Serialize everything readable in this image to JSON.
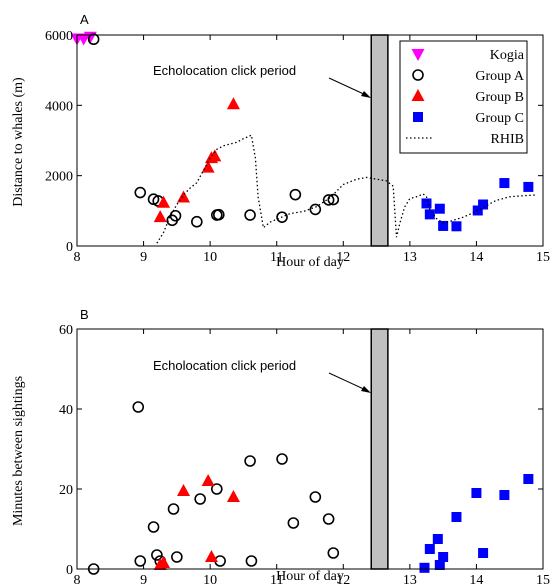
{
  "chart_data": [
    {
      "type": "scatter",
      "panel_label": "A",
      "xlabel": "Hour of day",
      "ylabel": "Distance to whales (m)",
      "xlim": [
        8,
        15
      ],
      "ylim": [
        0,
        6000
      ],
      "xticks": [
        "8",
        "9",
        "10",
        "11",
        "12",
        "13",
        "14",
        "15"
      ],
      "yticks": [
        "0",
        "2000",
        "4000",
        "6000"
      ],
      "xtick_values": [
        8,
        9,
        10,
        11,
        12,
        13,
        14,
        15
      ],
      "ytick_values": [
        0,
        2000,
        4000,
        6000
      ],
      "annotation": "Echolocation click period",
      "shaded_period": [
        12.42,
        12.67
      ],
      "legend_position": "top-right",
      "series": [
        {
          "name": "Kogia",
          "marker": "triangle-down",
          "color": "#ff00ff",
          "points": [
            [
              8.0,
              5900
            ],
            [
              8.1,
              5900
            ],
            [
              8.2,
              5950
            ]
          ]
        },
        {
          "name": "Group A",
          "marker": "circle-open",
          "color": "#000000",
          "points": [
            [
              8.25,
              5880
            ],
            [
              8.95,
              1520
            ],
            [
              9.15,
              1330
            ],
            [
              9.22,
              1280
            ],
            [
              9.43,
              730
            ],
            [
              9.48,
              860
            ],
            [
              9.8,
              690
            ],
            [
              10.1,
              880
            ],
            [
              10.13,
              890
            ],
            [
              10.6,
              880
            ],
            [
              11.08,
              820
            ],
            [
              11.28,
              1460
            ],
            [
              11.58,
              1040
            ],
            [
              11.78,
              1310
            ],
            [
              11.85,
              1320
            ]
          ]
        },
        {
          "name": "Group B",
          "marker": "triangle-up",
          "color": "#ff0000",
          "points": [
            [
              9.25,
              820
            ],
            [
              9.3,
              1230
            ],
            [
              9.6,
              1380
            ],
            [
              9.97,
              2230
            ],
            [
              10.02,
              2500
            ],
            [
              10.07,
              2550
            ],
            [
              10.35,
              4030
            ]
          ]
        },
        {
          "name": "Group C",
          "marker": "square",
          "color": "#0000ff",
          "points": [
            [
              13.25,
              1210
            ],
            [
              13.3,
              900
            ],
            [
              13.45,
              1060
            ],
            [
              13.5,
              570
            ],
            [
              13.7,
              560
            ],
            [
              14.02,
              1010
            ],
            [
              14.1,
              1180
            ],
            [
              14.42,
              1790
            ],
            [
              14.78,
              1680
            ]
          ]
        },
        {
          "name": "RHIB",
          "marker": "dotted-line",
          "color": "#000000",
          "points": [
            [
              9.2,
              80
            ],
            [
              9.3,
              380
            ],
            [
              9.4,
              850
            ],
            [
              9.5,
              1180
            ],
            [
              9.6,
              1450
            ],
            [
              9.7,
              1650
            ],
            [
              9.8,
              1800
            ],
            [
              9.9,
              2150
            ],
            [
              10.0,
              2500
            ],
            [
              10.1,
              2750
            ],
            [
              10.2,
              2850
            ],
            [
              10.3,
              2900
            ],
            [
              10.4,
              2950
            ],
            [
              10.5,
              3050
            ],
            [
              10.62,
              3150
            ],
            [
              10.68,
              2500
            ],
            [
              10.72,
              1400
            ],
            [
              10.8,
              520
            ],
            [
              10.9,
              680
            ],
            [
              11.0,
              760
            ],
            [
              11.2,
              920
            ],
            [
              11.4,
              980
            ],
            [
              11.6,
              1120
            ],
            [
              11.8,
              1370
            ],
            [
              12.0,
              1750
            ],
            [
              12.2,
              1900
            ],
            [
              12.35,
              1950
            ],
            [
              12.5,
              1900
            ],
            [
              12.65,
              1850
            ],
            [
              12.75,
              1700
            ],
            [
              12.8,
              250
            ],
            [
              12.85,
              650
            ],
            [
              12.92,
              1100
            ],
            [
              13.0,
              1350
            ],
            [
              13.1,
              1400
            ],
            [
              13.2,
              1480
            ],
            [
              13.25,
              1400
            ],
            [
              13.3,
              1050
            ],
            [
              13.4,
              780
            ],
            [
              13.5,
              660
            ],
            [
              13.6,
              700
            ],
            [
              13.7,
              760
            ],
            [
              13.8,
              820
            ],
            [
              13.9,
              900
            ],
            [
              14.0,
              1000
            ],
            [
              14.1,
              1080
            ],
            [
              14.2,
              1200
            ],
            [
              14.3,
              1300
            ],
            [
              14.5,
              1400
            ],
            [
              14.7,
              1430
            ],
            [
              14.9,
              1450
            ]
          ]
        }
      ]
    },
    {
      "type": "scatter",
      "panel_label": "B",
      "xlabel": "Hour of day",
      "ylabel": "Minutes between sightings",
      "xlim": [
        8,
        15
      ],
      "ylim": [
        0,
        60
      ],
      "xticks": [
        "8",
        "9",
        "10",
        "11",
        "12",
        "13",
        "14",
        "15"
      ],
      "yticks": [
        "0",
        "20",
        "40",
        "60"
      ],
      "xtick_values": [
        8,
        9,
        10,
        11,
        12,
        13,
        14,
        15
      ],
      "ytick_values": [
        0,
        20,
        40,
        60
      ],
      "annotation": "Echolocation click period",
      "shaded_period": [
        12.42,
        12.67
      ],
      "series": [
        {
          "name": "Group A",
          "marker": "circle-open",
          "color": "#000000",
          "points": [
            [
              8.25,
              0
            ],
            [
              8.92,
              40.5
            ],
            [
              8.95,
              2
            ],
            [
              9.15,
              10.5
            ],
            [
              9.2,
              3.5
            ],
            [
              9.25,
              2
            ],
            [
              9.45,
              15
            ],
            [
              9.5,
              3
            ],
            [
              9.85,
              17.5
            ],
            [
              10.1,
              20
            ],
            [
              10.15,
              2
            ],
            [
              10.6,
              27
            ],
            [
              10.62,
              2
            ],
            [
              11.08,
              27.5
            ],
            [
              11.25,
              11.5
            ],
            [
              11.58,
              18
            ],
            [
              11.78,
              12.5
            ],
            [
              11.85,
              4
            ]
          ]
        },
        {
          "name": "Group B",
          "marker": "triangle-up",
          "color": "#ff0000",
          "points": [
            [
              9.25,
              1
            ],
            [
              9.3,
              1.5
            ],
            [
              9.6,
              19.5
            ],
            [
              9.97,
              22
            ],
            [
              10.02,
              3
            ],
            [
              10.35,
              18
            ]
          ]
        },
        {
          "name": "Group C",
          "marker": "square",
          "color": "#0000ff",
          "points": [
            [
              13.22,
              0.3
            ],
            [
              13.3,
              5
            ],
            [
              13.42,
              7.5
            ],
            [
              13.45,
              1
            ],
            [
              13.5,
              3
            ],
            [
              13.7,
              13
            ],
            [
              14.0,
              19
            ],
            [
              14.1,
              4
            ],
            [
              14.42,
              18.5
            ],
            [
              14.78,
              22.5
            ]
          ]
        }
      ]
    }
  ]
}
